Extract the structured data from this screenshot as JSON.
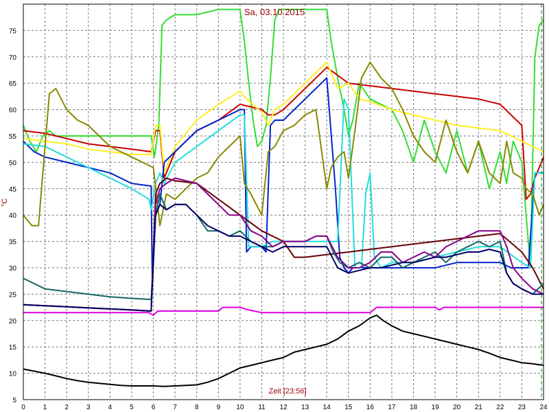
{
  "chart_data": {
    "type": "line",
    "title": "Sa, 03.10.2015",
    "xlabel": "Zeit [23:56]",
    "ylabel": "°C",
    "xlim": [
      0,
      24
    ],
    "ylim": [
      5,
      80
    ],
    "x_ticks": [
      "0",
      "1",
      "2",
      "3",
      "4",
      "5",
      "6",
      "7",
      "8",
      "9",
      "10",
      "11",
      "12",
      "13",
      "14",
      "15",
      "16",
      "17",
      "18",
      "19",
      "20",
      "21",
      "22",
      "23",
      "24"
    ],
    "y_ticks": [
      "5",
      "10",
      "15",
      "20",
      "25",
      "30",
      "35",
      "40",
      "45",
      "50",
      "55",
      "60",
      "65",
      "70",
      "75"
    ],
    "grid": true,
    "series": [
      {
        "color": "#33dd33",
        "x": [
          0,
          0.3,
          0.6,
          0.9,
          1.2,
          1.5,
          2,
          3,
          4,
          5,
          5.9,
          6.05,
          6.25,
          6.4,
          6.6,
          7,
          8,
          9,
          10,
          10.2,
          10.4,
          10.6,
          10.8,
          11,
          11.2,
          11.4,
          11.6,
          11.8,
          12,
          12.5,
          13,
          13.5,
          14,
          14.2,
          14.5,
          14.8,
          15,
          15.2,
          15.5,
          16,
          17,
          17.5,
          18,
          18.5,
          19,
          19.5,
          20,
          20.5,
          21,
          21.5,
          22,
          22.3,
          22.6,
          23,
          23.2,
          23.4,
          23.6,
          23.8,
          24
        ],
        "y": [
          57,
          54,
          52,
          55,
          56,
          55,
          55,
          55,
          55,
          55,
          55,
          51,
          57,
          76,
          77,
          78,
          78,
          79,
          79,
          73,
          65,
          58,
          53,
          54,
          57,
          66,
          77,
          79,
          79,
          79,
          79,
          79,
          79,
          73,
          66,
          60,
          55,
          58,
          65,
          62,
          60,
          56,
          50,
          58,
          52,
          48,
          56,
          48,
          54,
          45,
          52,
          46,
          54,
          50,
          40,
          30,
          70,
          76,
          77
        ]
      },
      {
        "color": "#cc0000",
        "x": [
          0,
          1,
          2,
          3,
          4,
          5,
          5.9,
          6.1,
          6.3,
          6.5,
          7,
          8,
          9,
          10,
          11,
          11.3,
          11.6,
          12,
          13,
          14,
          15,
          16,
          17,
          18,
          19,
          20,
          21,
          22,
          23,
          23.2,
          23.4,
          23.6,
          24
        ],
        "y": [
          56,
          55.5,
          54.5,
          53.5,
          53,
          52.5,
          52,
          56,
          56,
          47,
          52,
          56,
          58,
          61,
          60,
          59,
          59,
          60,
          64,
          68,
          65,
          64.5,
          64,
          63.5,
          63,
          62.5,
          62,
          61,
          57,
          43,
          44,
          47,
          51
        ]
      },
      {
        "color": "#ffee22",
        "x": [
          0,
          1,
          2,
          3,
          4,
          5,
          5.9,
          6.1,
          6.3,
          6.5,
          7,
          8,
          9,
          10,
          10.3,
          11,
          11.3,
          11.6,
          12,
          13,
          14,
          14.5,
          15,
          15.5,
          16,
          17,
          18,
          19,
          20,
          21,
          22,
          23,
          23.5,
          24
        ],
        "y": [
          54.5,
          54,
          53.5,
          52.5,
          52,
          51.5,
          51.5,
          57,
          57,
          48,
          53,
          58,
          61,
          63.5,
          62,
          59.5,
          57,
          60,
          61,
          65,
          69,
          64,
          65,
          62,
          61.5,
          60,
          59,
          58,
          57,
          56.5,
          56,
          54,
          53,
          52
        ]
      },
      {
        "color": "#0022cc",
        "x": [
          0,
          0.5,
          1,
          2,
          3,
          4,
          5,
          5.9,
          5.95,
          6.1,
          6.3,
          6.5,
          7,
          8,
          9,
          10,
          10.2,
          10.3,
          10.5,
          11,
          11.2,
          11.4,
          11.6,
          12,
          13,
          14,
          14.4,
          14.6,
          14.8,
          15,
          15.2,
          15.5,
          16,
          17,
          18,
          19,
          20,
          21,
          22,
          22.5,
          23,
          23.3,
          23.6,
          24
        ],
        "y": [
          54,
          52,
          51,
          50,
          49,
          48,
          46,
          45.5,
          28,
          40,
          42,
          50,
          52,
          56,
          58,
          60,
          60,
          33,
          34,
          34,
          33,
          57,
          58,
          58,
          62,
          66,
          45,
          32,
          30,
          29,
          30,
          30,
          30,
          30,
          30,
          30,
          31,
          31,
          31,
          30,
          30,
          30,
          48,
          48
        ]
      },
      {
        "color": "#22dddd",
        "x": [
          0,
          1,
          2,
          3,
          4,
          5,
          5.8,
          5.9,
          6.1,
          6.3,
          6.5,
          7,
          8,
          9,
          10,
          10.2,
          10.4,
          11,
          11.5,
          12,
          13,
          14,
          14.5,
          14.8,
          15,
          15.3,
          15.6,
          15.8,
          16,
          16.2,
          16.5,
          17,
          18,
          19,
          20,
          21,
          22,
          23,
          23.4,
          23.6,
          24
        ],
        "y": [
          53.5,
          53,
          51,
          49,
          47,
          45,
          43,
          41,
          46,
          48,
          46,
          50,
          53,
          56,
          59,
          59,
          34,
          34,
          35,
          35,
          35,
          35,
          35,
          62,
          60,
          30,
          30,
          44,
          48,
          32,
          30,
          31,
          31,
          32,
          33,
          34,
          34,
          31,
          30,
          48,
          48
        ]
      },
      {
        "color": "#888800",
        "x": [
          0,
          0.4,
          0.7,
          1,
          1.2,
          1.5,
          2,
          2.5,
          3,
          3.5,
          4,
          4.5,
          5,
          5.5,
          6,
          6.3,
          6.6,
          7,
          7.5,
          8,
          8.5,
          9,
          9.5,
          10,
          10.2,
          10.5,
          11,
          11.3,
          11.6,
          12,
          12.5,
          13,
          13.5,
          14,
          14.2,
          14.5,
          14.8,
          15,
          15.3,
          15.6,
          16,
          16.5,
          17,
          17.5,
          18,
          18.5,
          19,
          19.5,
          20,
          20.5,
          21,
          21.5,
          22,
          22.3,
          22.6,
          23,
          23.2,
          23.5,
          23.8,
          24
        ],
        "y": [
          40,
          38,
          38,
          53,
          63,
          64,
          60,
          58,
          57,
          55,
          53,
          52,
          51,
          50,
          49,
          38,
          44,
          43,
          45,
          47,
          48,
          51,
          53,
          55,
          46,
          44,
          40,
          52,
          53,
          56,
          57,
          59,
          60,
          45,
          49,
          51,
          52,
          47,
          56,
          66,
          69,
          66,
          64,
          60,
          55,
          52,
          50,
          58,
          52,
          48,
          54,
          48,
          46,
          54,
          48,
          47,
          45,
          44,
          40,
          42
        ]
      },
      {
        "color": "#660000",
        "x": [
          0,
          1,
          2,
          3,
          4,
          5,
          5.9,
          6.1,
          6.3,
          6.6,
          7,
          8,
          9,
          10,
          11,
          12,
          12.5,
          13,
          14,
          15,
          16,
          17,
          18,
          19,
          20,
          21,
          22,
          23,
          23.5,
          24
        ],
        "y": [
          23,
          22.8,
          22.6,
          22.4,
          22.2,
          22,
          21.8,
          44,
          46,
          47,
          46.5,
          46,
          43,
          40,
          37,
          35,
          32,
          32,
          32.5,
          33,
          33.5,
          34,
          34.5,
          35,
          35.5,
          36,
          36.5,
          33,
          30,
          26
        ]
      },
      {
        "color": "#116666",
        "x": [
          0,
          0.5,
          1,
          2,
          3,
          4,
          5,
          5.9,
          6.1,
          6.3,
          6.6,
          7,
          7.5,
          8,
          8.5,
          9,
          9.5,
          10,
          10.5,
          11,
          11.5,
          12,
          12.5,
          13,
          13.5,
          14,
          14.3,
          14.6,
          15,
          15.5,
          16,
          16.5,
          17,
          17.5,
          18,
          18.5,
          19,
          19.5,
          20,
          20.5,
          21,
          21.5,
          22,
          22.3,
          22.6,
          23,
          23.5,
          24
        ],
        "y": [
          28,
          27,
          26,
          25.5,
          25,
          24.5,
          24.2,
          24,
          40,
          44,
          41,
          42,
          42,
          40,
          37,
          37,
          36,
          37,
          35,
          34,
          34,
          35,
          35,
          35,
          36,
          36,
          33,
          31,
          30,
          31,
          30,
          32,
          32,
          30,
          31,
          32,
          33,
          31,
          33,
          34,
          35,
          34,
          35,
          29,
          27,
          26,
          25,
          27
        ]
      },
      {
        "color": "#880088",
        "x": [
          0,
          1,
          2,
          3,
          4,
          5,
          5.9,
          6.1,
          6.3,
          6.6,
          7,
          8,
          8.5,
          9,
          9.5,
          10,
          10.5,
          11,
          11.5,
          12,
          12.5,
          13,
          13.5,
          14,
          14.5,
          15,
          15.5,
          16,
          16.5,
          17,
          17.5,
          18,
          18.5,
          19,
          19.5,
          20,
          20.5,
          21,
          21.5,
          22,
          22.3,
          22.6,
          23,
          23.5,
          24
        ],
        "y": [
          23,
          22.8,
          22.6,
          22.4,
          22.2,
          22,
          21.8,
          42,
          45,
          46,
          47,
          46,
          44,
          42,
          40,
          40,
          37,
          36,
          34,
          35,
          35,
          35,
          36,
          36,
          32,
          30,
          30,
          31,
          33,
          33,
          31,
          32,
          33,
          32,
          34,
          35,
          36,
          37,
          37,
          37,
          34,
          30,
          28,
          26,
          25
        ]
      },
      {
        "color": "#000066",
        "x": [
          0,
          1,
          2,
          3,
          4,
          5,
          5.9,
          6.1,
          6.3,
          6.6,
          7,
          7.5,
          8,
          8.5,
          9,
          9.5,
          10,
          10.5,
          11,
          11.5,
          12,
          12.5,
          13,
          13.5,
          14,
          14.5,
          15,
          15.5,
          16,
          16.5,
          17,
          17.5,
          18,
          18.5,
          19,
          19.5,
          20,
          20.5,
          21,
          21.5,
          22,
          22.3,
          22.6,
          23,
          23.5,
          24
        ],
        "y": [
          23,
          22.8,
          22.6,
          22.4,
          22.2,
          22,
          21.8,
          40,
          42,
          41,
          42,
          42,
          40,
          38,
          37,
          36,
          36,
          35,
          34,
          33,
          34,
          34,
          34,
          34,
          34,
          30,
          29,
          29.5,
          30,
          30,
          30.5,
          31,
          31,
          31.5,
          32,
          32,
          32.5,
          33,
          33,
          33.5,
          33,
          29,
          27,
          26,
          25,
          25
        ]
      },
      {
        "color": "#dd00dd",
        "x": [
          0,
          1,
          2,
          3,
          4,
          5,
          5.8,
          6,
          6.2,
          6.5,
          7,
          8,
          9,
          9.2,
          10,
          10.4,
          11,
          12,
          13,
          14,
          15,
          16,
          16.3,
          17,
          18,
          19,
          19.2,
          19.4,
          20,
          21,
          22,
          23,
          24
        ],
        "y": [
          21.5,
          21.5,
          21.5,
          21.5,
          21.5,
          21.5,
          21.5,
          21,
          21.8,
          21.8,
          21.8,
          21.8,
          21.8,
          22.5,
          22.5,
          22,
          21.5,
          21.5,
          21.5,
          21.5,
          21.5,
          21.5,
          22.5,
          22.5,
          22.5,
          22.5,
          22,
          22.5,
          22.5,
          22.5,
          22.5,
          22.5,
          22.5
        ]
      },
      {
        "color": "#000000",
        "x": [
          0,
          0.5,
          1,
          1.5,
          2,
          2.5,
          3,
          3.5,
          4,
          4.5,
          5,
          5.5,
          6,
          6.5,
          7,
          7.5,
          8,
          8.5,
          9,
          9.5,
          10,
          10.5,
          11,
          11.5,
          12,
          12.5,
          13,
          13.5,
          14,
          14.5,
          15,
          15.5,
          16,
          16.3,
          16.6,
          17,
          17.5,
          18,
          18.5,
          19,
          19.5,
          20,
          20.5,
          21,
          21.5,
          22,
          22.5,
          23,
          23.5,
          24
        ],
        "y": [
          10.8,
          10.4,
          10,
          9.5,
          9,
          8.6,
          8.3,
          8.1,
          7.9,
          7.7,
          7.6,
          7.6,
          7.6,
          7.5,
          7.6,
          7.7,
          7.8,
          8.3,
          9,
          10,
          11,
          11.5,
          12,
          12.5,
          13,
          14,
          14.5,
          15,
          15.5,
          16.5,
          18,
          19,
          20.5,
          21,
          20,
          19,
          18,
          17.5,
          17,
          16.5,
          16,
          15.5,
          15,
          14.5,
          13.8,
          13,
          12.5,
          12,
          11.8,
          11.5
        ]
      }
    ]
  }
}
